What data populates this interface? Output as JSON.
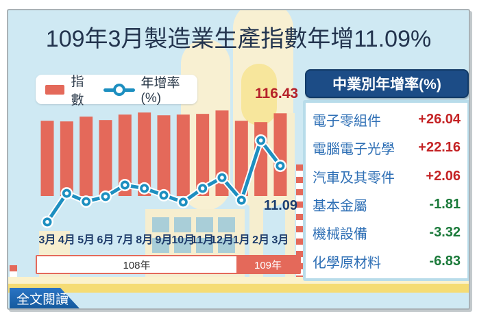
{
  "title": "109年3月製造業生產指數年增11.09%",
  "legend": {
    "bar_label": "指數",
    "line_label": "年增率(%)"
  },
  "chart_data": {
    "type": "bar-line-combo",
    "categories": [
      "3月",
      "4月",
      "5月",
      "6月",
      "7月",
      "8月",
      "9月",
      "10月",
      "11月",
      "12月",
      "1月",
      "2月",
      "3月"
    ],
    "series": [
      {
        "name": "指數",
        "type": "bar",
        "color": "#e4695a",
        "values": [
          105.9,
          105.0,
          111.7,
          106.9,
          114.6,
          117.5,
          113.6,
          114.6,
          115.6,
          120.4,
          105.9,
          104.0,
          116.43
        ]
      },
      {
        "name": "年增率(%)",
        "type": "line",
        "color": "#1d8fc0",
        "values": [
          -9.3,
          1.1,
          -1.9,
          -0.1,
          4.1,
          2.9,
          0.4,
          -2.1,
          2.9,
          6.8,
          -1.4,
          20.3,
          11.09
        ]
      }
    ],
    "annotations": {
      "index_peak": "116.43",
      "latest_growth": "11.09"
    },
    "x_groups": [
      {
        "label": "108年",
        "months": [
          "3月",
          "12月"
        ]
      },
      {
        "label": "109年",
        "months": [
          "1月",
          "3月"
        ]
      }
    ],
    "legend_position": "top-left",
    "grid": false
  },
  "panel": {
    "header": "中業別年增率(%)",
    "rows": [
      {
        "label": "電子零組件",
        "value": "+26.04"
      },
      {
        "label": "電腦電子光學",
        "value": "+22.16"
      },
      {
        "label": "汽車及其零件",
        "value": "+2.06"
      },
      {
        "label": "基本金屬",
        "value": "-1.81"
      },
      {
        "label": "機械設備",
        "value": "-3.32"
      },
      {
        "label": "化學原材料",
        "value": "-6.83"
      }
    ]
  },
  "footer": {
    "read_more": "全文閱讀"
  },
  "colors": {
    "card_bg": "#cfe9f3",
    "bar": "#e4695a",
    "line": "#1d8fc0",
    "positive": "#c42224",
    "negative": "#1b7a3a",
    "panel_header_bg": "#1c4c86",
    "peak_label": "#b5212a",
    "latest_label": "#1c3e70"
  }
}
